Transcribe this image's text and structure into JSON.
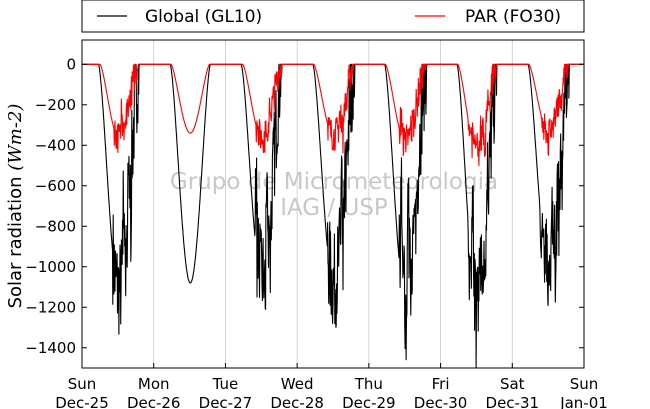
{
  "chart_data": {
    "type": "line",
    "ylabel": "Solar radiation ",
    "ylabel_unit": "(Wm-2)",
    "ylim": [
      -1500,
      120
    ],
    "yticks": [
      0,
      -200,
      -400,
      -600,
      -800,
      -1000,
      -1200,
      -1400
    ],
    "ytick_labels": [
      "0",
      "−200",
      "−400",
      "−600",
      "−800",
      "−1000",
      "−1200",
      "−1400"
    ],
    "xlim": [
      0,
      7
    ],
    "x_units": "days since Sun Dec-25 00:00",
    "xtick_labels": [
      {
        "day": "Sun",
        "date": "Dec-25"
      },
      {
        "day": "Mon",
        "date": "Dec-26"
      },
      {
        "day": "Tue",
        "date": "Dec-27"
      },
      {
        "day": "Wed",
        "date": "Dec-28"
      },
      {
        "day": "Thu",
        "date": "Dec-29"
      },
      {
        "day": "Fri",
        "date": "Dec-30"
      },
      {
        "day": "Sat",
        "date": "Dec-31"
      },
      {
        "day": "Sun",
        "date": "Jan-01"
      }
    ],
    "grid": "vertical",
    "legend_placement": "top",
    "watermark": [
      "Grupo de Micrometeorologia",
      "IAG / USP"
    ],
    "series": [
      {
        "name": "Global (GL10)",
        "color": "#000000",
        "days": [
          {
            "rise": 0.23,
            "set": 0.8,
            "peak": -1110,
            "spikes": [
              [
                0.58,
                -600
              ],
              [
                0.6,
                -850
              ],
              [
                0.63,
                -1000
              ],
              [
                0.65,
                -500
              ],
              [
                0.68,
                -700
              ]
            ]
          },
          {
            "rise": 1.23,
            "set": 1.79,
            "peak": -1080,
            "spikes": []
          },
          {
            "rise": 2.22,
            "set": 2.79,
            "peak": -1050,
            "spikes": [
              [
                2.43,
                -500
              ],
              [
                2.45,
                -1000
              ],
              [
                2.47,
                -850
              ],
              [
                2.56,
                -1100
              ],
              [
                2.58,
                -600
              ],
              [
                2.63,
                -900
              ]
            ]
          },
          {
            "rise": 3.22,
            "set": 3.8,
            "peak": -1080,
            "spikes": [
              [
                3.62,
                -500
              ],
              [
                3.64,
                -950
              ],
              [
                3.68,
                -700
              ]
            ]
          },
          {
            "rise": 4.22,
            "set": 4.8,
            "peak": -1150,
            "spikes": [
              [
                4.45,
                -400
              ],
              [
                4.48,
                -800
              ],
              [
                4.52,
                -1150
              ],
              [
                4.55,
                -600
              ],
              [
                4.6,
                -1000
              ],
              [
                4.65,
                -800
              ]
            ]
          },
          {
            "rise": 5.23,
            "set": 5.79,
            "peak": -1170,
            "spikes": [
              [
                5.4,
                -1050
              ],
              [
                5.45,
                -700
              ],
              [
                5.5,
                -1200
              ],
              [
                5.55,
                -900
              ],
              [
                5.6,
                -1080
              ],
              [
                5.66,
                -600
              ]
            ]
          },
          {
            "rise": 6.22,
            "set": 6.79,
            "peak": -1000,
            "spikes": [
              [
                6.4,
                -900
              ],
              [
                6.45,
                -1050
              ],
              [
                6.5,
                -1180
              ],
              [
                6.55,
                -700
              ],
              [
                6.6,
                -1000
              ],
              [
                6.65,
                -850
              ],
              [
                6.7,
                -620
              ]
            ]
          }
        ]
      },
      {
        "name": "PAR (FO30)",
        "color": "#ff0000",
        "days": [
          {
            "rise": 0.25,
            "set": 0.78,
            "peak": -360,
            "spikes": [
              [
                0.55,
                -200
              ],
              [
                0.6,
                -320
              ],
              [
                0.65,
                -180
              ]
            ]
          },
          {
            "rise": 1.24,
            "set": 1.78,
            "peak": -340,
            "spikes": []
          },
          {
            "rise": 2.24,
            "set": 2.78,
            "peak": -360,
            "spikes": [
              [
                2.45,
                -320
              ],
              [
                2.56,
                -350
              ],
              [
                2.62,
                -250
              ]
            ]
          },
          {
            "rise": 3.23,
            "set": 3.79,
            "peak": -350,
            "spikes": [
              [
                3.6,
                -200
              ],
              [
                3.64,
                -330
              ],
              [
                3.7,
                -150
              ]
            ]
          },
          {
            "rise": 4.23,
            "set": 4.79,
            "peak": -380,
            "spikes": [
              [
                4.45,
                -250
              ],
              [
                4.52,
                -380
              ],
              [
                4.6,
                -300
              ]
            ]
          },
          {
            "rise": 5.24,
            "set": 5.78,
            "peak": -420,
            "spikes": [
              [
                5.4,
                -350
              ],
              [
                5.5,
                -440
              ],
              [
                5.56,
                -300
              ],
              [
                5.62,
                -380
              ]
            ]
          },
          {
            "rise": 6.23,
            "set": 6.78,
            "peak": -330,
            "spikes": [
              [
                6.42,
                -300
              ],
              [
                6.5,
                -380
              ],
              [
                6.58,
                -260
              ],
              [
                6.68,
                -200
              ]
            ]
          }
        ]
      }
    ]
  }
}
